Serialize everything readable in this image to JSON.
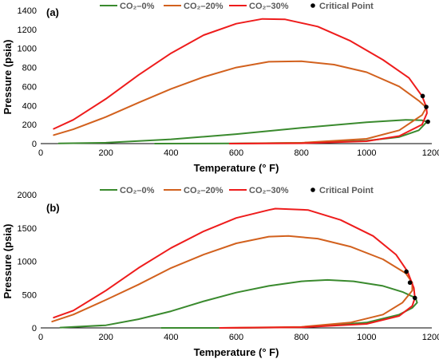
{
  "chart_data": [
    {
      "type": "line",
      "panel_label": "(a)",
      "xlabel": "Temperature (° F)",
      "ylabel": "Pressure (psia)",
      "xlim": [
        0,
        1200
      ],
      "ylim": [
        0,
        1400
      ],
      "xticks": [
        "0",
        "200",
        "400",
        "600",
        "800",
        "1000",
        "1200"
      ],
      "yticks": [
        "0",
        "200",
        "400",
        "600",
        "800",
        "1000",
        "1200",
        "1400"
      ],
      "legend_position": "top",
      "grid": false,
      "series": [
        {
          "name": "CO₂–0%",
          "color": "#3a8a2e",
          "points": [
            [
              55,
              2
            ],
            [
              200,
              9
            ],
            [
              400,
              45
            ],
            [
              600,
              100
            ],
            [
              800,
              165
            ],
            [
              1000,
              225
            ],
            [
              1120,
              250
            ],
            [
              1170,
              245
            ],
            [
              1185,
              230
            ],
            [
              1160,
              140
            ],
            [
              1100,
              70
            ],
            [
              1000,
              30
            ],
            [
              800,
              8
            ],
            [
              600,
              2
            ],
            [
              350,
              0
            ]
          ]
        },
        {
          "name": "CO₂–20%",
          "color": "#d2611e",
          "points": [
            [
              40,
              90
            ],
            [
              100,
              150
            ],
            [
              200,
              280
            ],
            [
              300,
              430
            ],
            [
              400,
              575
            ],
            [
              500,
              700
            ],
            [
              600,
              800
            ],
            [
              700,
              860
            ],
            [
              800,
              865
            ],
            [
              900,
              830
            ],
            [
              1000,
              750
            ],
            [
              1100,
              600
            ],
            [
              1160,
              450
            ],
            [
              1183,
              380
            ],
            [
              1170,
              300
            ],
            [
              1100,
              140
            ],
            [
              1000,
              50
            ],
            [
              800,
              8
            ],
            [
              580,
              0
            ]
          ]
        },
        {
          "name": "CO₂–30%",
          "color": "#ee1c1c",
          "points": [
            [
              40,
              155
            ],
            [
              100,
              250
            ],
            [
              200,
              470
            ],
            [
              300,
              720
            ],
            [
              400,
              950
            ],
            [
              500,
              1140
            ],
            [
              600,
              1260
            ],
            [
              680,
              1310
            ],
            [
              750,
              1305
            ],
            [
              850,
              1230
            ],
            [
              950,
              1080
            ],
            [
              1050,
              880
            ],
            [
              1130,
              690
            ],
            [
              1170,
              500
            ],
            [
              1183,
              385
            ],
            [
              1185,
              320
            ],
            [
              1170,
              200
            ],
            [
              1100,
              80
            ],
            [
              1000,
              25
            ],
            [
              800,
              3
            ],
            [
              580,
              0
            ]
          ]
        }
      ],
      "critical_points_label": "Critical Point",
      "critical_points": [
        [
          1172,
          500
        ],
        [
          1183,
          385
        ],
        [
          1188,
          230
        ]
      ]
    },
    {
      "type": "line",
      "panel_label": "(b)",
      "xlabel": "Temperature (° F)",
      "ylabel": "Pressure (psia)",
      "xlim": [
        0,
        1200
      ],
      "ylim": [
        0,
        2000
      ],
      "xticks": [
        "0",
        "200",
        "400",
        "600",
        "800",
        "1000",
        "1200"
      ],
      "yticks": [
        "0",
        "500",
        "1000",
        "1500",
        "2000"
      ],
      "legend_position": "top",
      "grid": false,
      "series": [
        {
          "name": "CO₂–0%",
          "color": "#3a8a2e",
          "points": [
            [
              60,
              5
            ],
            [
              200,
              40
            ],
            [
              300,
              130
            ],
            [
              400,
              250
            ],
            [
              500,
              400
            ],
            [
              600,
              530
            ],
            [
              700,
              630
            ],
            [
              800,
              700
            ],
            [
              880,
              720
            ],
            [
              960,
              700
            ],
            [
              1050,
              630
            ],
            [
              1110,
              540
            ],
            [
              1150,
              450
            ],
            [
              1155,
              380
            ],
            [
              1140,
              300
            ],
            [
              1100,
              200
            ],
            [
              1000,
              80
            ],
            [
              800,
              10
            ],
            [
              600,
              0
            ],
            [
              370,
              0
            ]
          ]
        },
        {
          "name": "CO₂–20%",
          "color": "#d2611e",
          "points": [
            [
              35,
              95
            ],
            [
              100,
              200
            ],
            [
              200,
              420
            ],
            [
              300,
              650
            ],
            [
              400,
              900
            ],
            [
              500,
              1100
            ],
            [
              600,
              1270
            ],
            [
              700,
              1370
            ],
            [
              760,
              1380
            ],
            [
              850,
              1340
            ],
            [
              950,
              1220
            ],
            [
              1050,
              1030
            ],
            [
              1120,
              820
            ],
            [
              1140,
              680
            ],
            [
              1140,
              560
            ],
            [
              1110,
              380
            ],
            [
              1050,
              200
            ],
            [
              950,
              80
            ],
            [
              800,
              15
            ],
            [
              550,
              0
            ]
          ]
        },
        {
          "name": "CO₂–30%",
          "color": "#ee1c1c",
          "points": [
            [
              40,
              155
            ],
            [
              100,
              260
            ],
            [
              200,
              560
            ],
            [
              300,
              900
            ],
            [
              400,
              1200
            ],
            [
              500,
              1450
            ],
            [
              600,
              1650
            ],
            [
              700,
              1770
            ],
            [
              720,
              1790
            ],
            [
              820,
              1770
            ],
            [
              920,
              1620
            ],
            [
              1020,
              1380
            ],
            [
              1090,
              1100
            ],
            [
              1125,
              850
            ],
            [
              1145,
              600
            ],
            [
              1148,
              450
            ],
            [
              1140,
              330
            ],
            [
              1100,
              180
            ],
            [
              1000,
              60
            ],
            [
              800,
              8
            ],
            [
              550,
              0
            ]
          ]
        }
      ],
      "critical_points_label": "Critical Point",
      "critical_points": [
        [
          1122,
          845
        ],
        [
          1133,
          680
        ],
        [
          1148,
          450
        ]
      ]
    }
  ]
}
